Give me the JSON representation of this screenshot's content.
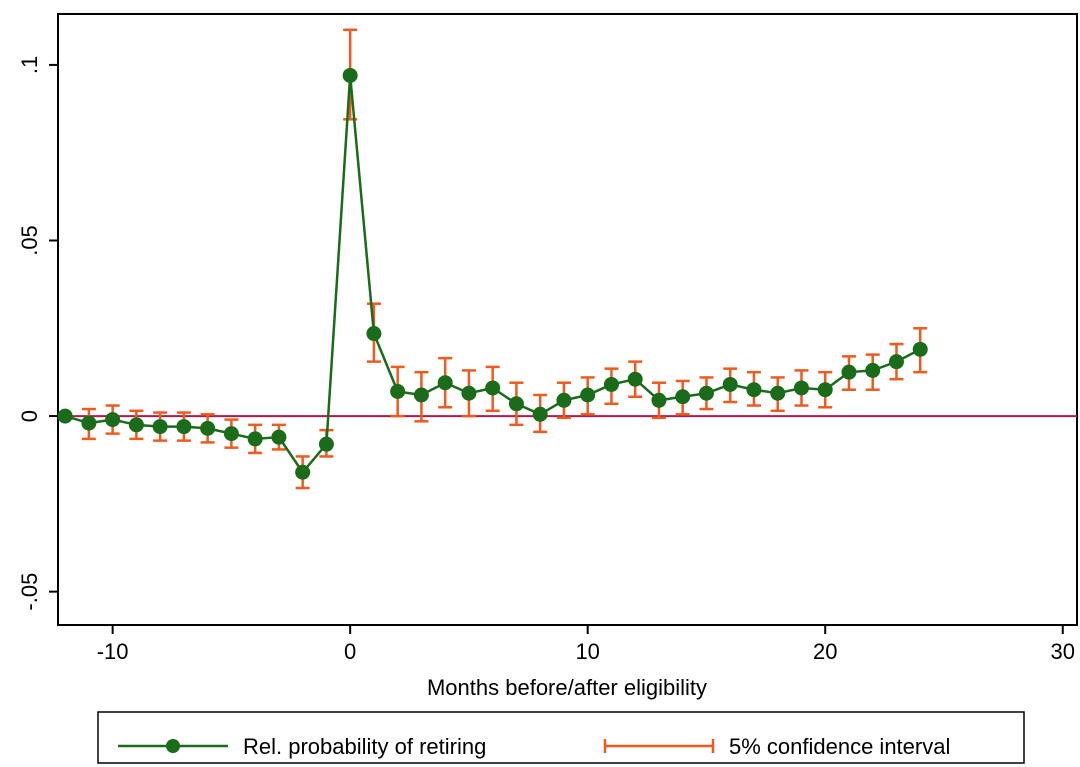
{
  "chart_data": {
    "type": "line",
    "title": "",
    "xlabel": "Months before/after eligibility",
    "ylabel": "",
    "xlim": [
      -12.3,
      30.6
    ],
    "ylim": [
      -0.0595,
      0.1145
    ],
    "xticks": [
      -10,
      0,
      10,
      20,
      30
    ],
    "xtick_labels": [
      "-10",
      "0",
      "10",
      "20",
      "30"
    ],
    "yticks": [
      -0.05,
      0,
      0.05,
      0.1
    ],
    "ytick_labels": [
      "-.05",
      "0",
      ".05",
      ".1"
    ],
    "grid": false,
    "reference_line": {
      "y": 0,
      "color": "#b01a4a"
    },
    "legend_position": "bottom",
    "x": [
      -12,
      -11,
      -10,
      -9,
      -8,
      -7,
      -6,
      -5,
      -4,
      -3,
      -2,
      -1,
      0,
      1,
      2,
      3,
      4,
      5,
      6,
      7,
      8,
      9,
      10,
      11,
      12,
      13,
      14,
      15,
      16,
      17,
      18,
      19,
      20,
      21,
      22,
      23,
      24
    ],
    "series": [
      {
        "name": "Rel. probability of retiring",
        "color": "#1a6b1a",
        "values": [
          0.0,
          -0.002,
          -0.001,
          -0.0025,
          -0.003,
          -0.003,
          -0.0035,
          -0.005,
          -0.0065,
          -0.006,
          -0.016,
          -0.008,
          0.097,
          0.0235,
          0.007,
          0.006,
          0.0095,
          0.0065,
          0.008,
          0.0035,
          0.0005,
          0.0045,
          0.006,
          0.009,
          0.0105,
          0.0045,
          0.0055,
          0.0065,
          0.009,
          0.0075,
          0.0065,
          0.008,
          0.0075,
          0.0125,
          0.013,
          0.0155,
          0.019
        ]
      }
    ],
    "confidence_interval": {
      "name": "5% confidence interval",
      "color": "#f05a1e",
      "lower": [
        null,
        -0.0065,
        -0.005,
        -0.0065,
        -0.007,
        -0.007,
        -0.0075,
        -0.009,
        -0.0105,
        -0.0095,
        -0.0205,
        -0.0115,
        0.0845,
        0.0155,
        0.0,
        -0.0015,
        0.0025,
        0.0,
        0.0015,
        -0.0025,
        -0.0045,
        -0.0005,
        0.0005,
        0.0035,
        0.0055,
        -0.0005,
        0.0005,
        0.002,
        0.004,
        0.003,
        0.0015,
        0.003,
        0.0025,
        0.0075,
        0.0075,
        0.0105,
        0.0125
      ],
      "upper": [
        null,
        0.002,
        0.003,
        0.0015,
        0.001,
        0.001,
        0.0005,
        -0.001,
        -0.0025,
        -0.0025,
        -0.0115,
        -0.004,
        0.11,
        0.032,
        0.014,
        0.0125,
        0.0165,
        0.013,
        0.014,
        0.0095,
        0.006,
        0.0095,
        0.011,
        0.0135,
        0.0155,
        0.0095,
        0.01,
        0.011,
        0.0135,
        0.0125,
        0.011,
        0.013,
        0.0125,
        0.017,
        0.0175,
        0.0205,
        0.025
      ]
    }
  }
}
